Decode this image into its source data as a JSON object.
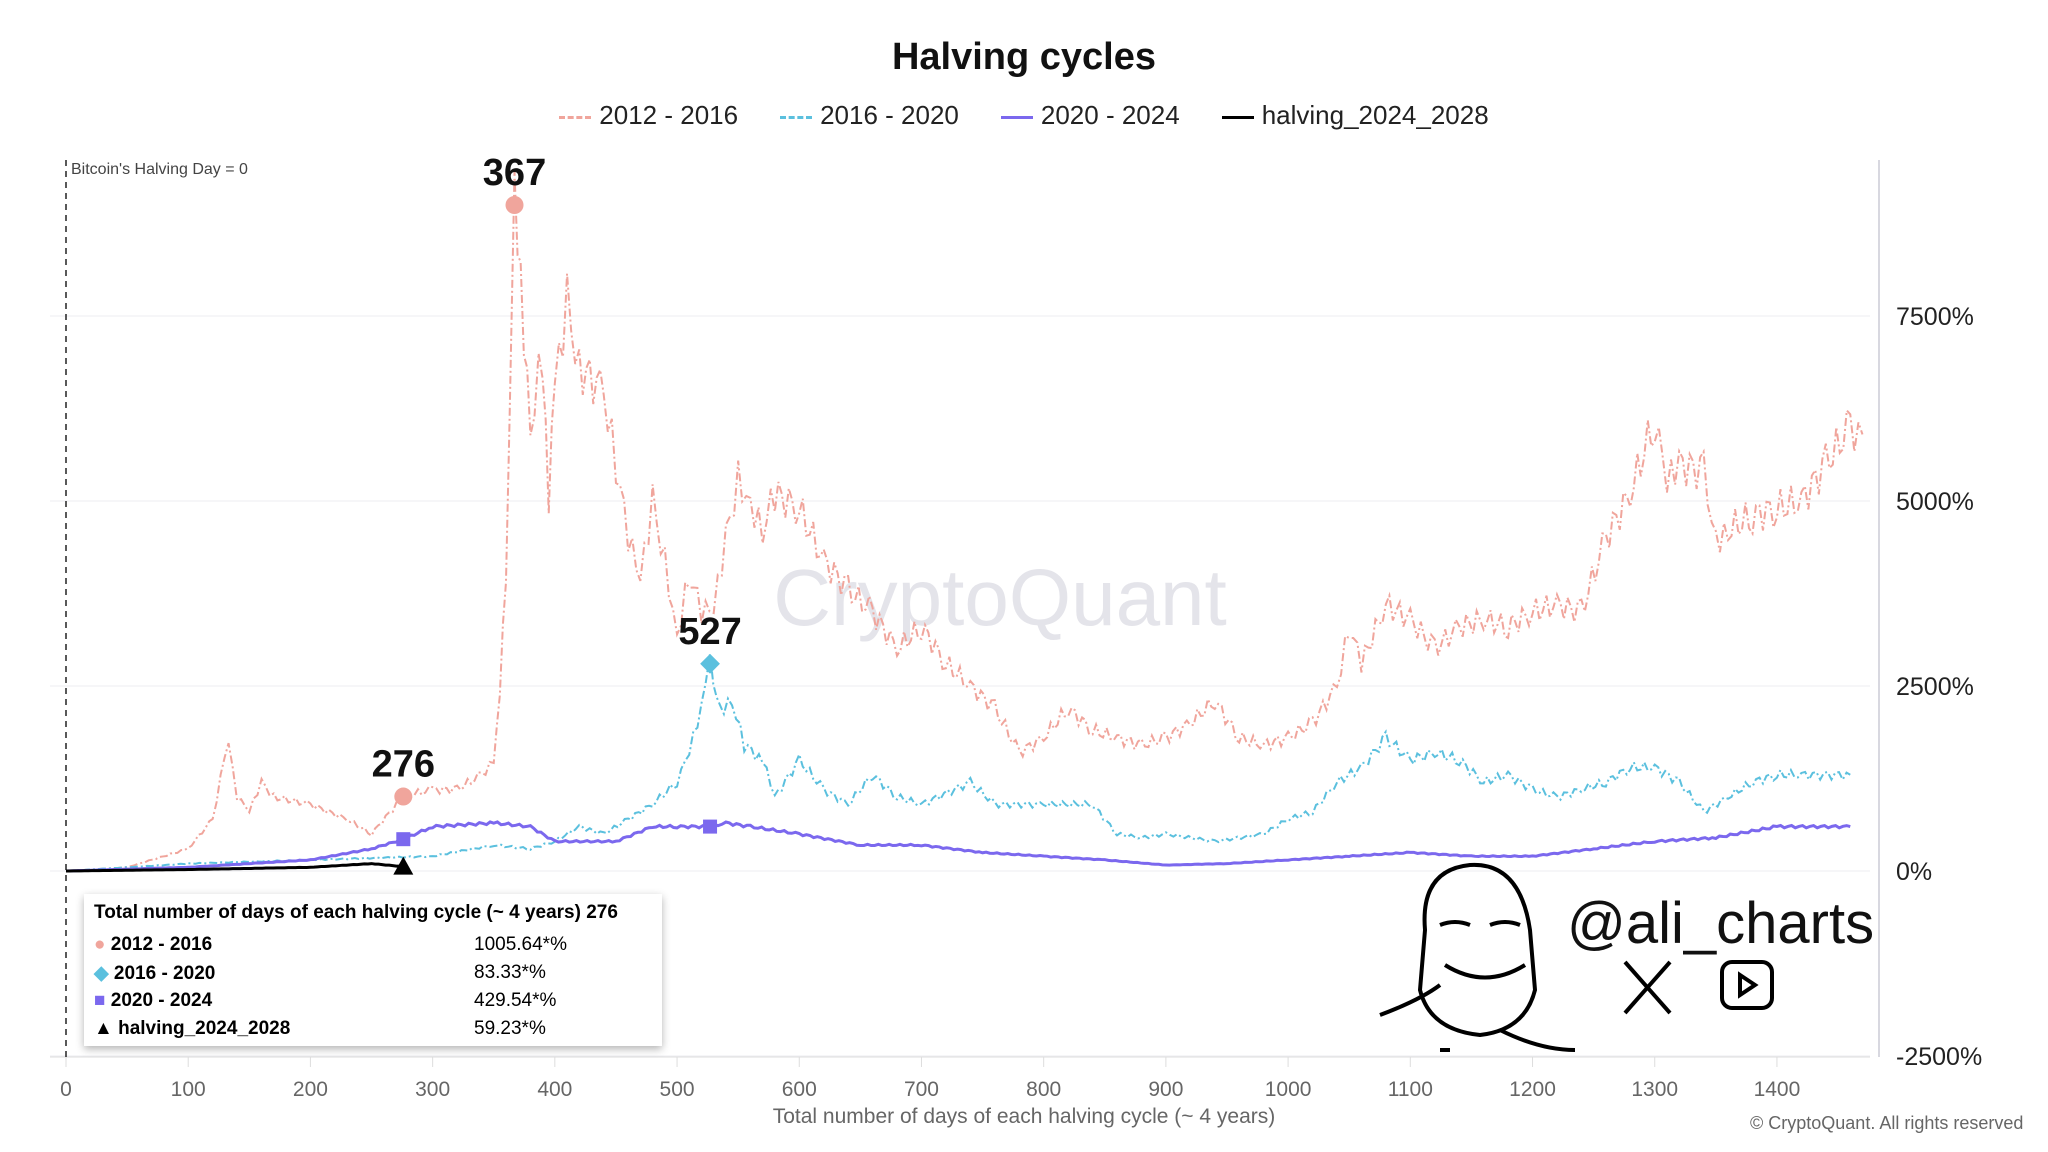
{
  "chart_data": {
    "type": "line",
    "title": "Halving cycles",
    "xlabel": "Total number of days of each halving cycle (~ 4 years)",
    "ylabel": "",
    "xlim": [
      0,
      1470
    ],
    "ylim": [
      -2500,
      9600
    ],
    "xticks": [
      0,
      100,
      200,
      300,
      400,
      500,
      600,
      700,
      800,
      900,
      1000,
      1100,
      1200,
      1300,
      1400
    ],
    "yticks": [
      -2500,
      0,
      2500,
      5000,
      7500
    ],
    "ytick_labels": [
      "-2500%",
      "0%",
      "2500%",
      "5000%",
      "7500%"
    ],
    "grid": "horizontal",
    "legend_position": "top",
    "annotation_zero": "Bitcoin's Halving Day = 0",
    "watermark": "CryptoQuant",
    "series": [
      {
        "name": "2012 - 2016",
        "color": "#f0a59c",
        "dash": "dashdot",
        "points": [
          [
            0,
            0
          ],
          [
            50,
            50
          ],
          [
            100,
            300
          ],
          [
            120,
            700
          ],
          [
            133,
            1800
          ],
          [
            140,
            1000
          ],
          [
            150,
            800
          ],
          [
            160,
            1200
          ],
          [
            170,
            1000
          ],
          [
            200,
            900
          ],
          [
            230,
            700
          ],
          [
            250,
            500
          ],
          [
            276,
            1006
          ],
          [
            300,
            1100
          ],
          [
            320,
            1100
          ],
          [
            340,
            1300
          ],
          [
            350,
            1500
          ],
          [
            355,
            2500
          ],
          [
            360,
            4000
          ],
          [
            363,
            6000
          ],
          [
            367,
            9000
          ],
          [
            372,
            8000
          ],
          [
            380,
            6000
          ],
          [
            390,
            7000
          ],
          [
            395,
            5000
          ],
          [
            400,
            6500
          ],
          [
            410,
            7700
          ],
          [
            420,
            6800
          ],
          [
            440,
            6500
          ],
          [
            450,
            5500
          ],
          [
            460,
            4500
          ],
          [
            470,
            3900
          ],
          [
            480,
            5000
          ],
          [
            490,
            4200
          ],
          [
            500,
            3200
          ],
          [
            510,
            4000
          ],
          [
            520,
            3500
          ],
          [
            530,
            3500
          ],
          [
            540,
            4500
          ],
          [
            550,
            5300
          ],
          [
            560,
            5000
          ],
          [
            570,
            4600
          ],
          [
            580,
            5100
          ],
          [
            600,
            4900
          ],
          [
            620,
            4200
          ],
          [
            640,
            3800
          ],
          [
            660,
            3500
          ],
          [
            680,
            3000
          ],
          [
            700,
            3300
          ],
          [
            720,
            2800
          ],
          [
            740,
            2500
          ],
          [
            760,
            2200
          ],
          [
            780,
            1600
          ],
          [
            800,
            1800
          ],
          [
            820,
            2200
          ],
          [
            840,
            1900
          ],
          [
            860,
            1800
          ],
          [
            880,
            1700
          ],
          [
            900,
            1800
          ],
          [
            920,
            2000
          ],
          [
            940,
            2300
          ],
          [
            960,
            1800
          ],
          [
            980,
            1700
          ],
          [
            1000,
            1800
          ],
          [
            1020,
            2000
          ],
          [
            1040,
            2500
          ],
          [
            1050,
            3300
          ],
          [
            1060,
            2800
          ],
          [
            1080,
            3600
          ],
          [
            1100,
            3400
          ],
          [
            1120,
            3000
          ],
          [
            1140,
            3300
          ],
          [
            1160,
            3400
          ],
          [
            1180,
            3300
          ],
          [
            1200,
            3500
          ],
          [
            1220,
            3600
          ],
          [
            1240,
            3500
          ],
          [
            1260,
            4500
          ],
          [
            1280,
            5100
          ],
          [
            1300,
            6100
          ],
          [
            1310,
            5200
          ],
          [
            1320,
            5500
          ],
          [
            1340,
            5400
          ],
          [
            1350,
            4500
          ],
          [
            1360,
            4600
          ],
          [
            1380,
            4800
          ],
          [
            1400,
            4900
          ],
          [
            1420,
            5000
          ],
          [
            1440,
            5500
          ],
          [
            1460,
            6000
          ],
          [
            1470,
            5900
          ]
        ]
      },
      {
        "name": "2016 - 2020",
        "color": "#5bc0de",
        "dash": "dashdot",
        "points": [
          [
            0,
            0
          ],
          [
            100,
            100
          ],
          [
            200,
            150
          ],
          [
            300,
            200
          ],
          [
            350,
            350
          ],
          [
            380,
            300
          ],
          [
            400,
            400
          ],
          [
            420,
            600
          ],
          [
            440,
            500
          ],
          [
            460,
            700
          ],
          [
            480,
            900
          ],
          [
            500,
            1200
          ],
          [
            510,
            1600
          ],
          [
            520,
            2200
          ],
          [
            527,
            2800
          ],
          [
            535,
            2200
          ],
          [
            545,
            2300
          ],
          [
            555,
            1700
          ],
          [
            570,
            1500
          ],
          [
            580,
            1000
          ],
          [
            600,
            1500
          ],
          [
            620,
            1100
          ],
          [
            640,
            900
          ],
          [
            660,
            1300
          ],
          [
            680,
            1000
          ],
          [
            700,
            900
          ],
          [
            740,
            1200
          ],
          [
            760,
            900
          ],
          [
            800,
            900
          ],
          [
            840,
            900
          ],
          [
            860,
            500
          ],
          [
            880,
            450
          ],
          [
            900,
            500
          ],
          [
            940,
            400
          ],
          [
            980,
            500
          ],
          [
            1000,
            700
          ],
          [
            1020,
            800
          ],
          [
            1040,
            1200
          ],
          [
            1060,
            1400
          ],
          [
            1080,
            1800
          ],
          [
            1100,
            1500
          ],
          [
            1120,
            1600
          ],
          [
            1140,
            1500
          ],
          [
            1160,
            1200
          ],
          [
            1180,
            1300
          ],
          [
            1200,
            1100
          ],
          [
            1220,
            1000
          ],
          [
            1240,
            1100
          ],
          [
            1260,
            1200
          ],
          [
            1280,
            1400
          ],
          [
            1300,
            1400
          ],
          [
            1320,
            1200
          ],
          [
            1340,
            800
          ],
          [
            1360,
            1000
          ],
          [
            1380,
            1200
          ],
          [
            1400,
            1300
          ],
          [
            1420,
            1300
          ],
          [
            1460,
            1300
          ]
        ]
      },
      {
        "name": "2020 - 2024",
        "color": "#7b68ee",
        "dash": "solid",
        "points": [
          [
            0,
            0
          ],
          [
            100,
            50
          ],
          [
            200,
            150
          ],
          [
            250,
            300
          ],
          [
            276,
            430
          ],
          [
            300,
            600
          ],
          [
            350,
            650
          ],
          [
            380,
            600
          ],
          [
            400,
            400
          ],
          [
            450,
            400
          ],
          [
            480,
            600
          ],
          [
            500,
            600
          ],
          [
            527,
            600
          ],
          [
            540,
            650
          ],
          [
            560,
            600
          ],
          [
            600,
            500
          ],
          [
            650,
            350
          ],
          [
            700,
            350
          ],
          [
            750,
            250
          ],
          [
            800,
            200
          ],
          [
            850,
            150
          ],
          [
            900,
            80
          ],
          [
            950,
            100
          ],
          [
            1000,
            150
          ],
          [
            1050,
            200
          ],
          [
            1100,
            250
          ],
          [
            1150,
            200
          ],
          [
            1200,
            200
          ],
          [
            1250,
            300
          ],
          [
            1300,
            400
          ],
          [
            1350,
            450
          ],
          [
            1400,
            600
          ],
          [
            1460,
            600
          ]
        ]
      },
      {
        "name": "halving_2024_2028",
        "color": "#000000",
        "dash": "solid",
        "points": [
          [
            0,
            0
          ],
          [
            100,
            20
          ],
          [
            200,
            50
          ],
          [
            250,
            100
          ],
          [
            276,
            59
          ]
        ]
      }
    ],
    "markers": [
      {
        "series": 0,
        "x": 367,
        "y": 9000,
        "label": "367",
        "shape": "circle"
      },
      {
        "series": 1,
        "x": 527,
        "y": 2800,
        "label": "527",
        "shape": "diamond"
      },
      {
        "series": 0,
        "x": 276,
        "y": 1006,
        "label": "276",
        "shape": "circle"
      },
      {
        "series": 2,
        "x": 276,
        "y": 430,
        "shape": "square"
      },
      {
        "series": 2,
        "x": 527,
        "y": 600,
        "shape": "square"
      },
      {
        "series": 3,
        "x": 276,
        "y": 59,
        "shape": "triangle"
      }
    ]
  },
  "tooltip": {
    "header": "Total number of days of each halving cycle (~ 4 years) 276",
    "rows": [
      {
        "label": "2012 - 2016",
        "value": "1005.64*%"
      },
      {
        "label": "2016 - 2020",
        "value": "83.33*%"
      },
      {
        "label": "2020 - 2024",
        "value": "429.54*%"
      },
      {
        "label": "halving_2024_2028",
        "value": "59.23*%"
      }
    ]
  },
  "branding": {
    "handle": "@ali_charts",
    "icons": [
      "x-logo-icon",
      "youtube-icon"
    ]
  },
  "copyright": "© CryptoQuant. All rights reserved"
}
